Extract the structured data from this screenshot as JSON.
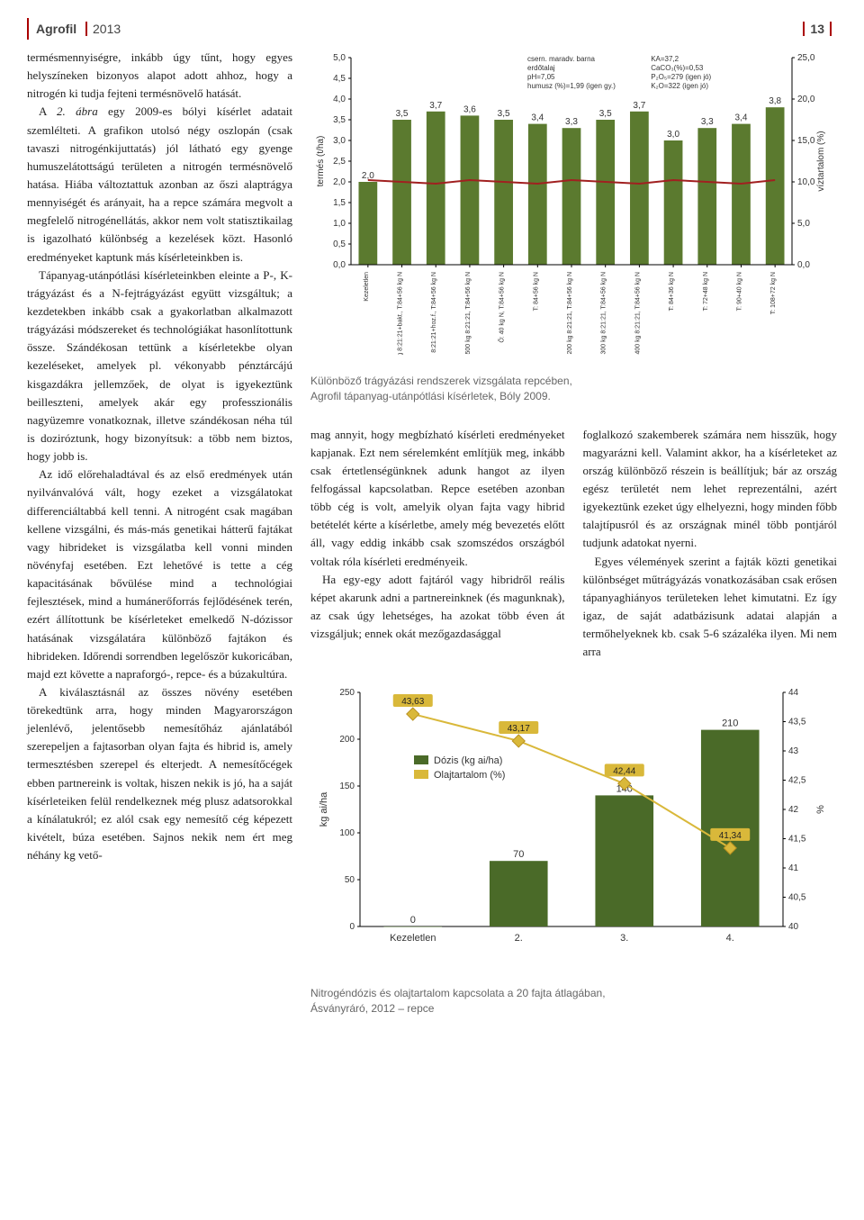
{
  "header": {
    "brand": "Agrofil",
    "year": "2013",
    "pageno": "13"
  },
  "text": {
    "p1": "termésmennyiségre, inkább úgy tűnt, hogy egyes helyszíneken bizonyos alapot adott ahhoz, hogy a nitrogén ki tudja fejteni termésnövelő hatását.",
    "p2": "A 2. ábra egy 2009-es bólyi kísérlet adatait szemlélteti. A grafikon utolsó négy oszlopán (csak tavaszi nitrogénkijuttatás) jól látható egy gyenge humuszelátottságú területen a nitrogén termésnövelő hatása. Hiába változtattuk azonban az őszi alaptrágya mennyiségét és arányait, ha a repce számára megvolt a megfelelő nitrogénellátás, akkor nem volt statisztikailag is igazolható különbség a kezelések közt. Hasonló eredményeket kaptunk más kísérleteinkben is.",
    "p3": "Tápanyag-utánpótlási kísérleteinkben eleinte a P-, K-trágyázást és a N-fejtrágyázást együtt vizsgáltuk; a kezdetekben inkább csak a gyakorlatban alkalmazott trágyázási módszereket és technológiákat hasonlítottunk össze. Szándékosan tettünk a kísérletekbe olyan kezeléseket, amelyek pl. vékonyabb pénztárcájú kisgazdákra jellemzőek, de olyat is igyekeztünk beilleszteni, amelyek akár egy professzionális nagyüzemre vonatkoznak, illetve szándékosan néha túl is doziróztunk, hogy bizonyítsuk: a több nem biztos, hogy jobb is.",
    "p4": "Az idő előrehaladtával és az első eredmények után nyilvánvalóvá vált, hogy ezeket a vizsgálatokat differenciáltabbá kell tenni. A nitrogént csak magában kellene vizsgálni, és más-más genetikai hátterű fajtákat vagy hibrideket is vizsgálatba kell vonni minden növényfaj esetében. Ezt lehetővé is tette a cég kapacitásának bővülése mind a technológiai fejlesztések, mind a humánerőforrás fejlődésének terén, ezért állítottunk be kísérleteket emelkedő N-dózissor hatásának vizsgálatára különböző fajtákon és hibrideken. Időrendi sorrendben legelőször kukoricában, majd ezt követte a napraforgó-, repce- és a búzakultúra.",
    "p5": "A kiválasztásnál az összes növény esetében törekedtünk arra, hogy minden Magyarországon jelenlévő, jelentősebb nemesítőház ajánlatából szerepeljen a fajtasorban olyan fajta és hibrid is, amely termesztésben szerepel és elterjedt. A nemesítőcégek ebben partnereink is voltak, hiszen nekik is jó, ha a saját kísérleteiken felül rendelkeznek még plusz adatsorokkal a kínálatukról; ez alól csak egy nemesítő cég képezett kivételt, búza esetében. Sajnos nekik nem ért meg néhány kg vető-",
    "m1": "mag annyit, hogy megbízható kísérleti eredményeket kapjanak. Ezt nem sérelemként említjük meg, inkább csak értetlenségünknek adunk hangot az ilyen felfogással kapcsolatban. Repce esetében azonban több cég is volt, amelyik olyan fajta vagy hibrid betételét kérte a kísérletbe, amely még bevezetés előtt áll, vagy eddig inkább csak szomszédos országból voltak róla kísérleti eredményeik.",
    "m2": "Ha egy-egy adott fajtáról vagy hibridről reális képet akarunk adni a partnereinknek (és magunknak), az csak úgy lehetséges, ha azokat több éven át vizsgáljuk; ennek okát mezőgazdasággal",
    "r1": "foglalkozó szakemberek számára nem hisszük, hogy magyarázni kell. Valamint akkor, ha a kísérleteket az ország különböző részein is beállítjuk; bár az ország egész területét nem lehet reprezentálni, azért igyekeztünk ezeket úgy elhelyezni, hogy minden főbb talajtípusról és az országnak minél több pontjáról tudjunk adatokat nyerni.",
    "r2": "Egyes vélemények szerint a fajták közti genetikai különbséget műtrágyázás vonatkozásában csak erősen tápanyaghiányos területeken lehet kimutatni. Ez így igaz, de saját adatbázisunk adatai alapján a termőhelyeknek kb. csak 5-6 százaléka ilyen. Mi nem arra"
  },
  "chart1": {
    "ylabel": "termés (t/ha)",
    "y2label": "víztartalom (%)",
    "ylim": [
      0,
      5.0
    ],
    "ystep": 0.5,
    "y2lim": [
      0,
      25
    ],
    "y2step": 5,
    "bars": [
      {
        "label": "Kezeletlen",
        "v": 2.0,
        "lbl": "2,0"
      },
      {
        "label": "Ő: 200 kg 8:21:21+bakt., T:84+56 kg N",
        "v": 3.5,
        "lbl": "3,5"
      },
      {
        "label": "Ő: 200 kg 8:21:21+hoz.f., T:84+56 kg N",
        "v": 3.7,
        "lbl": "3,7"
      },
      {
        "label": "Ő: 500 kg 8:21:21, T:84+56 kg N",
        "v": 3.6,
        "lbl": "3,6"
      },
      {
        "label": "Ő: 40 kg N, T:84+56 kg N",
        "v": 3.5,
        "lbl": "3,5"
      },
      {
        "label": "T: 84+56 kg N",
        "v": 3.4,
        "lbl": "3,4"
      },
      {
        "label": "Ő: 200 kg 8:21:21, T:84+56 kg N",
        "v": 3.3,
        "lbl": "3,3"
      },
      {
        "label": "Ő: 300 kg 8:21:21, T:84+56 kg N",
        "v": 3.5,
        "lbl": "3,5"
      },
      {
        "label": "Ő: 400 kg 8:21:21, T:84+56 kg N",
        "v": 3.7,
        "lbl": "3,7"
      },
      {
        "label": "T: 84+36 kg N",
        "v": 3.0,
        "lbl": "3,0"
      },
      {
        "label": "T: 72+48 kg N",
        "v": 3.3,
        "lbl": "3,3"
      },
      {
        "label": "T: 90+40 kg N",
        "v": 3.4,
        "lbl": "3,4"
      },
      {
        "label": "T: 108+72 kg N",
        "v": 3.8,
        "lbl": "3,8"
      }
    ],
    "bar_color": "#5b7a2f",
    "line_color": "#a12020",
    "bg": "#f7f5ed",
    "info_left": [
      "csern. maradv. barna",
      "erdőtalaj",
      "pH=7,05",
      "humusz (%)=1,99 (igen gy.)"
    ],
    "info_right": [
      "KA=37,2",
      "CaCO₃(%)=0,53",
      "P₂O₅=279 (igen jó)",
      "K₂O=322 (igen jó)"
    ],
    "caption1": "Különböző trágyázási rendszerek vizsgálata repcében,",
    "caption2": "Agrofil tápanyag-utánpótlási kísérletek, Bóly 2009."
  },
  "chart2": {
    "ylabel": "kg ai/ha",
    "y2label": "%",
    "ylim": [
      0,
      250
    ],
    "ystep": 50,
    "y2lim": [
      40,
      44
    ],
    "y2step": 0.5,
    "cats": [
      "Kezeletlen",
      "2.",
      "3.",
      "4."
    ],
    "bars": [
      0,
      70,
      140,
      210
    ],
    "labels": [
      43.63,
      43.17,
      42.44,
      41.34
    ],
    "label_txt": [
      "43,63",
      "43,17",
      "42,44",
      "41,34"
    ],
    "bar_color": "#4a6a28",
    "point_color": "#d9b83a",
    "legend": [
      "Dózis (kg ai/ha)",
      "Olajtartalom (%)"
    ],
    "bg": "#f7f5ed",
    "caption1": "Nitrogéndózis és olajtartalom kapcsolata a 20 fajta átlagában,",
    "caption2": "Ásványráró, 2012 – repce"
  }
}
